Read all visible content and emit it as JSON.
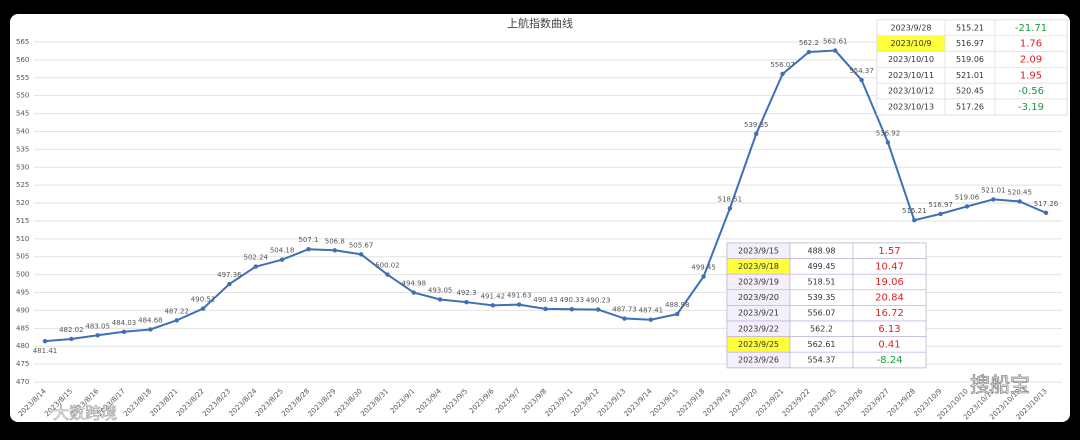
{
  "chart_data": {
    "type": "line",
    "title": "上航指数曲线",
    "x": [
      "2023/8/14",
      "2023/8/15",
      "2023/8/16",
      "2023/8/17",
      "2023/8/18",
      "2023/8/21",
      "2023/8/22",
      "2023/8/23",
      "2023/8/24",
      "2023/8/25",
      "2023/8/28",
      "2023/8/29",
      "2023/8/30",
      "2023/8/31",
      "2023/9/1",
      "2023/9/4",
      "2023/9/5",
      "2023/9/6",
      "2023/9/7",
      "2023/9/8",
      "2023/9/11",
      "2023/9/12",
      "2023/9/13",
      "2023/9/14",
      "2023/9/15",
      "2023/9/18",
      "2023/9/19",
      "2023/9/20",
      "2023/9/21",
      "2023/9/22",
      "2023/9/25",
      "2023/9/26",
      "2023/9/27",
      "2023/9/28",
      "2023/10/9",
      "2023/10/10",
      "2023/10/11",
      "2023/10/12",
      "2023/10/13"
    ],
    "values": [
      481.41,
      482.02,
      483.05,
      484.03,
      484.68,
      487.22,
      490.51,
      497.36,
      502.24,
      504.18,
      507.1,
      506.8,
      505.67,
      500.02,
      494.98,
      493.05,
      492.3,
      491.42,
      491.63,
      490.43,
      490.33,
      490.23,
      487.73,
      487.41,
      488.98,
      499.45,
      518.51,
      539.35,
      556.07,
      562.2,
      562.61,
      554.37,
      536.92,
      515.21,
      516.97,
      519.06,
      521.01,
      520.45,
      517.26
    ],
    "color": "#3f6fb6",
    "ylim": [
      470,
      565
    ],
    "yticks": [
      470,
      475,
      480,
      485,
      490,
      495,
      500,
      505,
      510,
      515,
      520,
      525,
      530,
      535,
      540,
      545,
      550,
      555,
      560,
      565
    ],
    "grid": true
  },
  "tables": [
    {
      "rows": [
        [
          "2023/9/28",
          "515.21",
          "-21.71"
        ],
        [
          "2023/10/9",
          "516.97",
          "1.76"
        ],
        [
          "2023/10/10",
          "519.06",
          "2.09"
        ],
        [
          "2023/10/11",
          "521.01",
          "1.95"
        ],
        [
          "2023/10/12",
          "520.45",
          "-0.56"
        ],
        [
          "2023/10/13",
          "517.26",
          "-3.19"
        ]
      ],
      "highlighted": [
        1
      ]
    },
    {
      "rows": [
        [
          "2023/9/15",
          "488.98",
          "1.57"
        ],
        [
          "2023/9/18",
          "499.45",
          "10.47"
        ],
        [
          "2023/9/19",
          "518.51",
          "19.06"
        ],
        [
          "2023/9/20",
          "539.35",
          "20.84"
        ],
        [
          "2023/9/21",
          "556.07",
          "16.72"
        ],
        [
          "2023/9/22",
          "562.2",
          "6.13"
        ],
        [
          "2023/9/25",
          "562.61",
          "0.41"
        ],
        [
          "2023/9/26",
          "554.37",
          "-8.24"
        ]
      ],
      "highlighted": [
        1,
        6
      ]
    }
  ],
  "watermarks": [
    "搜船宝",
    "大数跨境"
  ]
}
